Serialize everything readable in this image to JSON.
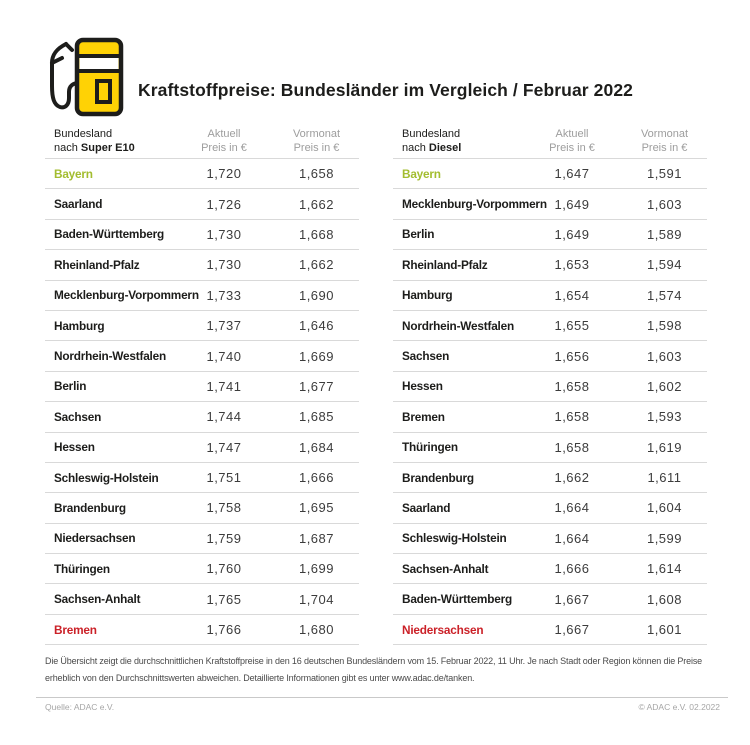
{
  "header": {
    "title": "Kraftstoffpreise: Bundesländer im Vergleich / Februar 2022"
  },
  "columns": {
    "state": "Bundesland",
    "nach": "nach",
    "aktuell": "Aktuell",
    "vormonat": "Vormonat",
    "preis": "Preis in €"
  },
  "chart_data": [
    {
      "type": "table",
      "fuel": "Super E10",
      "columns": [
        "Bundesland nach Super E10",
        "Aktuell Preis in €",
        "Vormonat Preis in €"
      ],
      "rows": [
        {
          "state": "Bayern",
          "aktuell": "1,720",
          "vormonat": "1,658",
          "color": "green"
        },
        {
          "state": "Saarland",
          "aktuell": "1,726",
          "vormonat": "1,662"
        },
        {
          "state": "Baden-Württemberg",
          "aktuell": "1,730",
          "vormonat": "1,668"
        },
        {
          "state": "Rheinland-Pfalz",
          "aktuell": "1,730",
          "vormonat": "1,662"
        },
        {
          "state": "Mecklenburg-Vorpommern",
          "aktuell": "1,733",
          "vormonat": "1,690"
        },
        {
          "state": "Hamburg",
          "aktuell": "1,737",
          "vormonat": "1,646"
        },
        {
          "state": "Nordrhein-Westfalen",
          "aktuell": "1,740",
          "vormonat": "1,669"
        },
        {
          "state": "Berlin",
          "aktuell": "1,741",
          "vormonat": "1,677"
        },
        {
          "state": "Sachsen",
          "aktuell": "1,744",
          "vormonat": "1,685"
        },
        {
          "state": "Hessen",
          "aktuell": "1,747",
          "vormonat": "1,684"
        },
        {
          "state": "Schleswig-Holstein",
          "aktuell": "1,751",
          "vormonat": "1,666"
        },
        {
          "state": "Brandenburg",
          "aktuell": "1,758",
          "vormonat": "1,695"
        },
        {
          "state": "Niedersachsen",
          "aktuell": "1,759",
          "vormonat": "1,687"
        },
        {
          "state": "Thüringen",
          "aktuell": "1,760",
          "vormonat": "1,699"
        },
        {
          "state": "Sachsen-Anhalt",
          "aktuell": "1,765",
          "vormonat": "1,704"
        },
        {
          "state": "Bremen",
          "aktuell": "1,766",
          "vormonat": "1,680",
          "color": "red"
        }
      ]
    },
    {
      "type": "table",
      "fuel": "Diesel",
      "columns": [
        "Bundesland nach Diesel",
        "Aktuell Preis in €",
        "Vormonat Preis in €"
      ],
      "rows": [
        {
          "state": "Bayern",
          "aktuell": "1,647",
          "vormonat": "1,591",
          "color": "green"
        },
        {
          "state": "Mecklenburg-Vorpommern",
          "aktuell": "1,649",
          "vormonat": "1,603"
        },
        {
          "state": "Berlin",
          "aktuell": "1,649",
          "vormonat": "1,589"
        },
        {
          "state": "Rheinland-Pfalz",
          "aktuell": "1,653",
          "vormonat": "1,594"
        },
        {
          "state": "Hamburg",
          "aktuell": "1,654",
          "vormonat": "1,574"
        },
        {
          "state": "Nordrhein-Westfalen",
          "aktuell": "1,655",
          "vormonat": "1,598"
        },
        {
          "state": "Sachsen",
          "aktuell": "1,656",
          "vormonat": "1,603"
        },
        {
          "state": "Hessen",
          "aktuell": "1,658",
          "vormonat": "1,602"
        },
        {
          "state": "Bremen",
          "aktuell": "1,658",
          "vormonat": "1,593"
        },
        {
          "state": "Thüringen",
          "aktuell": "1,658",
          "vormonat": "1,619"
        },
        {
          "state": "Brandenburg",
          "aktuell": "1,662",
          "vormonat": "1,611"
        },
        {
          "state": "Saarland",
          "aktuell": "1,664",
          "vormonat": "1,604"
        },
        {
          "state": "Schleswig-Holstein",
          "aktuell": "1,664",
          "vormonat": "1,599"
        },
        {
          "state": "Sachsen-Anhalt",
          "aktuell": "1,666",
          "vormonat": "1,614"
        },
        {
          "state": "Baden-Württemberg",
          "aktuell": "1,667",
          "vormonat": "1,608"
        },
        {
          "state": "Niedersachsen",
          "aktuell": "1,667",
          "vormonat": "1,601",
          "color": "red"
        }
      ]
    }
  ],
  "footnote": "Die Übersicht zeigt die durchschnittlichen Kraftstoffpreise in den 16 deutschen Bundesländern vom 15. Februar 2022, 11 Uhr. Je nach Stadt oder Region können die Preise erheblich von den Durchschnittswerten abweichen. Detaillierte Informationen gibt es unter www.adac.de/tanken.",
  "source": {
    "left": "Quelle: ADAC e.V.",
    "right": "© ADAC e.V. 02.2022"
  },
  "colors": {
    "brand_yellow": "#FFD205",
    "cheapest_green": "#A3BD30",
    "most_expensive_red": "#CB2128",
    "outline_black": "#1D1D1B"
  }
}
